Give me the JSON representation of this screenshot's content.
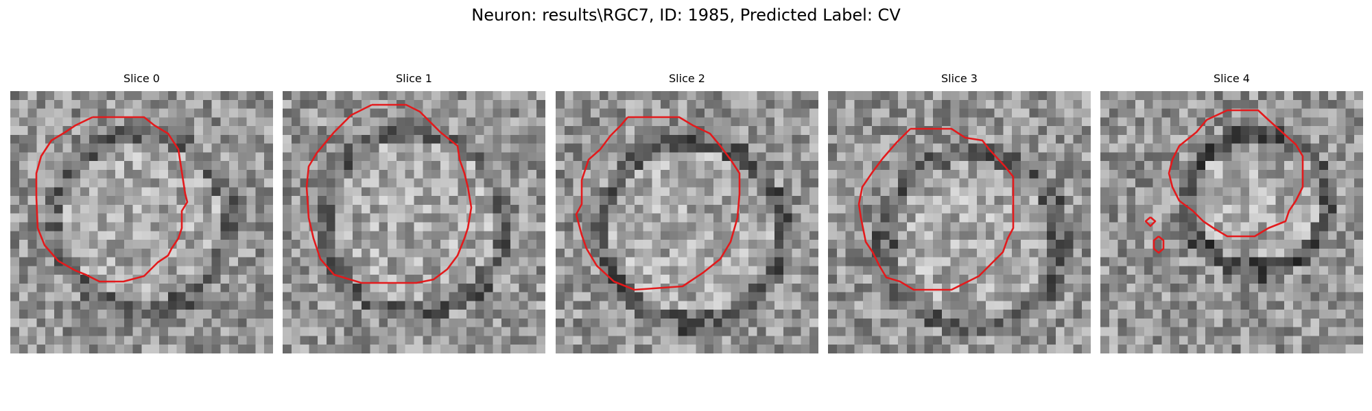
{
  "figure": {
    "title": "Neuron: results\\RGC7, ID: 1985, Predicted Label: CV"
  },
  "panels": [
    {
      "title": "Slice 0"
    },
    {
      "title": "Slice 1"
    },
    {
      "title": "Slice 2"
    },
    {
      "title": "Slice 3"
    },
    {
      "title": "Slice 4"
    }
  ],
  "colors": {
    "contour": "#e31a1c",
    "background": "#ffffff"
  }
}
